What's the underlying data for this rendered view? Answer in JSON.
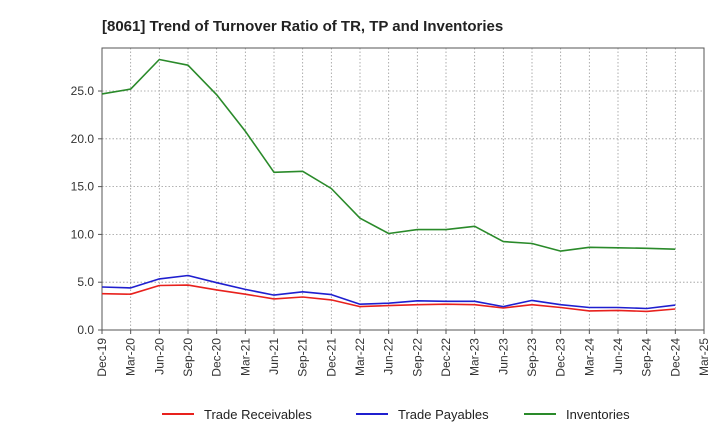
{
  "chart_data": {
    "type": "line",
    "title": "[8061]  Trend of Turnover Ratio of TR, TP and Inventories",
    "xlabel": "",
    "ylabel": "",
    "x": [
      "Dec-19",
      "Mar-20",
      "Jun-20",
      "Sep-20",
      "Dec-20",
      "Mar-21",
      "Jun-21",
      "Sep-21",
      "Dec-21",
      "Mar-22",
      "Jun-22",
      "Sep-22",
      "Dec-22",
      "Mar-23",
      "Jun-23",
      "Sep-23",
      "Dec-23",
      "Mar-24",
      "Jun-24",
      "Sep-24",
      "Dec-24"
    ],
    "x_ticks": [
      "Dec-19",
      "Mar-20",
      "Jun-20",
      "Sep-20",
      "Dec-20",
      "Mar-21",
      "Jun-21",
      "Sep-21",
      "Dec-21",
      "Mar-22",
      "Jun-22",
      "Sep-22",
      "Dec-22",
      "Mar-23",
      "Jun-23",
      "Sep-23",
      "Dec-23",
      "Mar-24",
      "Jun-24",
      "Sep-24",
      "Dec-24",
      "Mar-25"
    ],
    "ylim": [
      0,
      29.5
    ],
    "y_ticks": [
      "0.0",
      "5.0",
      "10.0",
      "15.0",
      "20.0",
      "25.0"
    ],
    "y_tick_values": [
      0,
      5,
      10,
      15,
      20,
      25
    ],
    "grid": true,
    "legend_position": "bottom",
    "series": [
      {
        "name": "Trade Receivables",
        "color": "#e8211d",
        "values": [
          3.8,
          3.75,
          4.65,
          4.7,
          4.2,
          3.75,
          3.25,
          3.45,
          3.15,
          2.45,
          2.55,
          2.65,
          2.7,
          2.65,
          2.3,
          2.65,
          2.35,
          2.0,
          2.05,
          1.95,
          2.2
        ]
      },
      {
        "name": "Trade Payables",
        "color": "#1f1fcf",
        "values": [
          4.5,
          4.4,
          5.35,
          5.7,
          4.95,
          4.25,
          3.65,
          4.0,
          3.7,
          2.7,
          2.8,
          3.05,
          3.0,
          3.0,
          2.45,
          3.1,
          2.65,
          2.35,
          2.35,
          2.25,
          2.6
        ]
      },
      {
        "name": "Inventories",
        "color": "#2a8a2a",
        "values": [
          24.7,
          25.2,
          28.3,
          27.7,
          24.6,
          20.8,
          16.5,
          16.6,
          14.8,
          11.7,
          10.1,
          10.5,
          10.5,
          10.85,
          9.25,
          9.05,
          8.25,
          8.65,
          8.6,
          8.55,
          8.45
        ]
      }
    ]
  }
}
